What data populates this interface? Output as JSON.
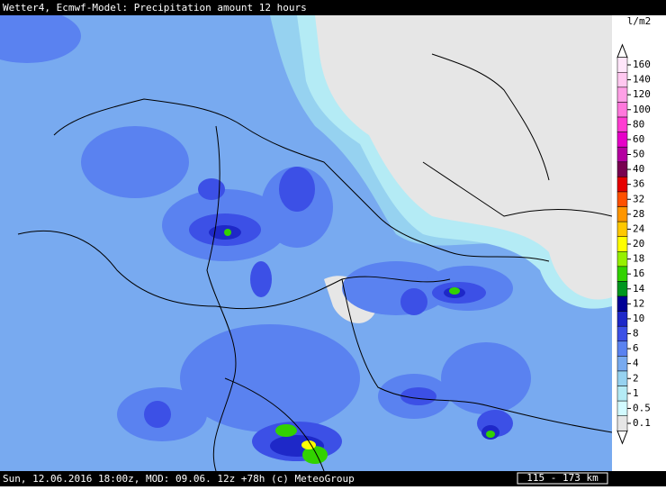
{
  "header": {
    "title": "Wetter4, Ecmwf-Model: Precipitation amount 12 hours"
  },
  "legend": {
    "unit": "l/m2",
    "levels": [
      {
        "label": "160",
        "color": "#ffe6fa"
      },
      {
        "label": "140",
        "color": "#ffc8f0"
      },
      {
        "label": "120",
        "color": "#ffa0e6"
      },
      {
        "label": "100",
        "color": "#ff78dc"
      },
      {
        "label": "80",
        "color": "#ff3cd2"
      },
      {
        "label": "60",
        "color": "#e600c8"
      },
      {
        "label": "50",
        "color": "#b400a0"
      },
      {
        "label": "40",
        "color": "#780050"
      },
      {
        "label": "36",
        "color": "#e60000"
      },
      {
        "label": "32",
        "color": "#ff5000"
      },
      {
        "label": "28",
        "color": "#ff9600"
      },
      {
        "label": "24",
        "color": "#ffc800"
      },
      {
        "label": "20",
        "color": "#ffff00"
      },
      {
        "label": "18",
        "color": "#96f000"
      },
      {
        "label": "16",
        "color": "#32d200"
      },
      {
        "label": "14",
        "color": "#00961e"
      },
      {
        "label": "12",
        "color": "#000096"
      },
      {
        "label": "10",
        "color": "#1e28c8"
      },
      {
        "label": "8",
        "color": "#3c50e6"
      },
      {
        "label": "6",
        "color": "#5a82f0"
      },
      {
        "label": "4",
        "color": "#78aaf0"
      },
      {
        "label": "2",
        "color": "#96d2f0"
      },
      {
        "label": "1",
        "color": "#b4ebf5"
      },
      {
        "label": "0.5",
        "color": "#d2faff"
      },
      {
        "label": "0.1",
        "color": "#e6e6e6"
      }
    ]
  },
  "footer": {
    "text": "Sun, 12.06.2016 18:00z, MOD: 09.06. 12z +78h (c) MeteoGroup",
    "scale": "115 - 173 km"
  }
}
